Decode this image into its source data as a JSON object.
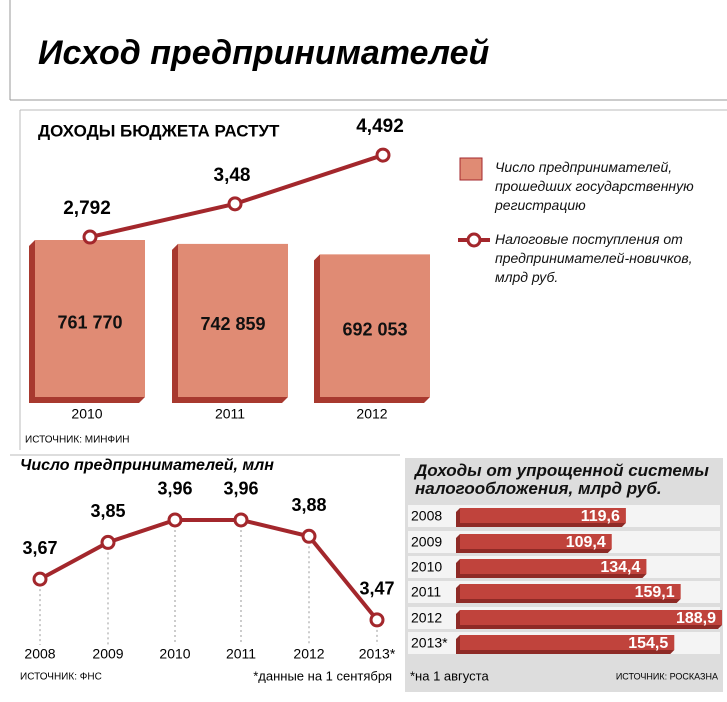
{
  "title": "Исход предпринимателей",
  "chart_data": [
    {
      "type": "bar",
      "title": "ДОХОДЫ БЮДЖЕТА РАСТУТ",
      "categories": [
        "2010",
        "2011",
        "2012"
      ],
      "series": [
        {
          "name": "Число предпринимателей, прошедших государственную регистрацию",
          "color": "#e08b74",
          "values": [
            761770,
            742859,
            692053
          ],
          "value_labels": [
            "761 770",
            "742 859",
            "692 053"
          ]
        },
        {
          "name": "Налоговые поступления от предпринимателей-новичков, млрд руб.",
          "type": "line",
          "color": "#a3272c",
          "values": [
            2.792,
            3.48,
            4.492
          ],
          "value_labels": [
            "2,792",
            "3,48",
            "4,492"
          ]
        }
      ],
      "source": "ИСТОЧНИК: МИНФИН"
    },
    {
      "type": "line",
      "title": "Число предпринимателей, млн",
      "categories": [
        "2008",
        "2009",
        "2010",
        "2011",
        "2012",
        "2013*"
      ],
      "values": [
        3.67,
        3.85,
        3.96,
        3.96,
        3.88,
        3.47
      ],
      "value_labels": [
        "3,67",
        "3,85",
        "3,96",
        "3,96",
        "3,88",
        "3,47"
      ],
      "color": "#a3272c",
      "note": "*данные на 1 сентября",
      "source": "ИСТОЧНИК: ФНС"
    },
    {
      "type": "barh",
      "title": "Доходы от упрощенной системы налогообложения, млрд руб.",
      "categories": [
        "2008",
        "2009",
        "2010",
        "2011",
        "2012",
        "2013*"
      ],
      "values": [
        119.6,
        109.4,
        134.4,
        159.1,
        188.9,
        154.5
      ],
      "value_labels": [
        "119,6",
        "109,4",
        "134,4",
        "159,1",
        "188,9",
        "154,5"
      ],
      "color": "#c0433c",
      "note": "*на 1 августа",
      "source": "ИСТОЧНИК: РОСКАЗНА"
    }
  ]
}
